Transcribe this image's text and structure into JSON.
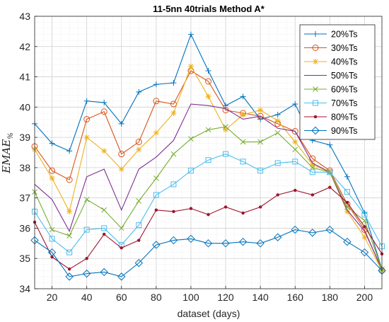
{
  "chart_data": {
    "type": "line",
    "title": "11-5nn 40trials Method A*",
    "xlabel": "dataset (days)",
    "ylabel": "EMAE_%",
    "xlim": [
      10,
      210
    ],
    "ylim": [
      34,
      43
    ],
    "xticks": [
      20,
      40,
      60,
      80,
      100,
      120,
      140,
      160,
      180,
      200
    ],
    "yticks": [
      34,
      35,
      36,
      37,
      38,
      39,
      40,
      41,
      42,
      43
    ],
    "grid": "major+minor dotted",
    "legend_position": "top-right",
    "x": [
      10,
      20,
      30,
      40,
      50,
      60,
      70,
      80,
      90,
      100,
      110,
      120,
      130,
      140,
      150,
      160,
      170,
      180,
      190,
      200,
      210
    ],
    "series": [
      {
        "name": "20%Ts",
        "color": "#0072BD",
        "marker": "plus",
        "values": [
          39.45,
          38.8,
          38.55,
          40.2,
          40.15,
          39.45,
          40.5,
          40.75,
          40.8,
          42.4,
          41.2,
          40.05,
          40.35,
          39.6,
          39.75,
          40.1,
          38.9,
          38.75,
          37.7,
          36.5,
          34.65
        ]
      },
      {
        "name": "30%Ts",
        "color": "#D95319",
        "marker": "circle",
        "values": [
          38.7,
          37.9,
          37.6,
          39.6,
          39.85,
          38.45,
          38.85,
          40.2,
          40.1,
          41.2,
          40.85,
          39.9,
          39.8,
          39.7,
          39.45,
          39.2,
          38.3,
          37.9,
          36.8,
          35.95,
          34.6
        ]
      },
      {
        "name": "40%Ts",
        "color": "#EDB120",
        "marker": "asterisk",
        "values": [
          38.6,
          37.65,
          36.55,
          39.0,
          38.55,
          37.95,
          38.6,
          39.15,
          39.8,
          41.35,
          40.35,
          39.25,
          39.75,
          39.9,
          39.55,
          38.85,
          38.1,
          37.85,
          36.55,
          35.7,
          34.6
        ]
      },
      {
        "name": "50%Ts",
        "color": "#7E2F8E",
        "marker": "none",
        "values": [
          37.45,
          36.95,
          35.9,
          37.7,
          37.95,
          36.6,
          37.95,
          38.35,
          38.9,
          40.1,
          40.05,
          39.95,
          39.6,
          39.7,
          39.3,
          39.2,
          38.15,
          37.85,
          36.6,
          35.9,
          34.65
        ]
      },
      {
        "name": "60%Ts",
        "color": "#77AC30",
        "marker": "x",
        "values": [
          37.2,
          35.95,
          35.75,
          36.95,
          36.6,
          36.0,
          36.9,
          37.65,
          38.45,
          38.95,
          39.25,
          39.35,
          38.85,
          38.85,
          39.15,
          38.6,
          38.0,
          37.85,
          36.7,
          36.25,
          34.65
        ]
      },
      {
        "name": "70%Ts",
        "color": "#4DBEEE",
        "marker": "square",
        "values": [
          36.55,
          35.65,
          35.2,
          35.95,
          36.0,
          35.45,
          36.1,
          37.1,
          37.45,
          37.9,
          38.25,
          38.45,
          38.2,
          37.9,
          38.15,
          38.2,
          37.85,
          37.85,
          37.2,
          36.45,
          35.4
        ]
      },
      {
        "name": "80%Ts",
        "color": "#A2142F",
        "marker": "dot",
        "values": [
          36.2,
          35.05,
          34.65,
          35.0,
          35.8,
          35.35,
          35.6,
          36.6,
          36.55,
          36.65,
          36.45,
          36.7,
          36.5,
          36.7,
          37.1,
          37.25,
          37.1,
          37.35,
          36.85,
          36.05,
          35.15
        ]
      },
      {
        "name": "90%Ts",
        "color": "#0072BD",
        "marker": "diamond",
        "values": [
          35.6,
          35.2,
          34.4,
          34.5,
          34.55,
          34.4,
          34.85,
          35.45,
          35.6,
          35.65,
          35.5,
          35.5,
          35.55,
          35.5,
          35.7,
          35.95,
          35.85,
          35.95,
          35.55,
          35.2,
          34.6
        ]
      }
    ]
  }
}
